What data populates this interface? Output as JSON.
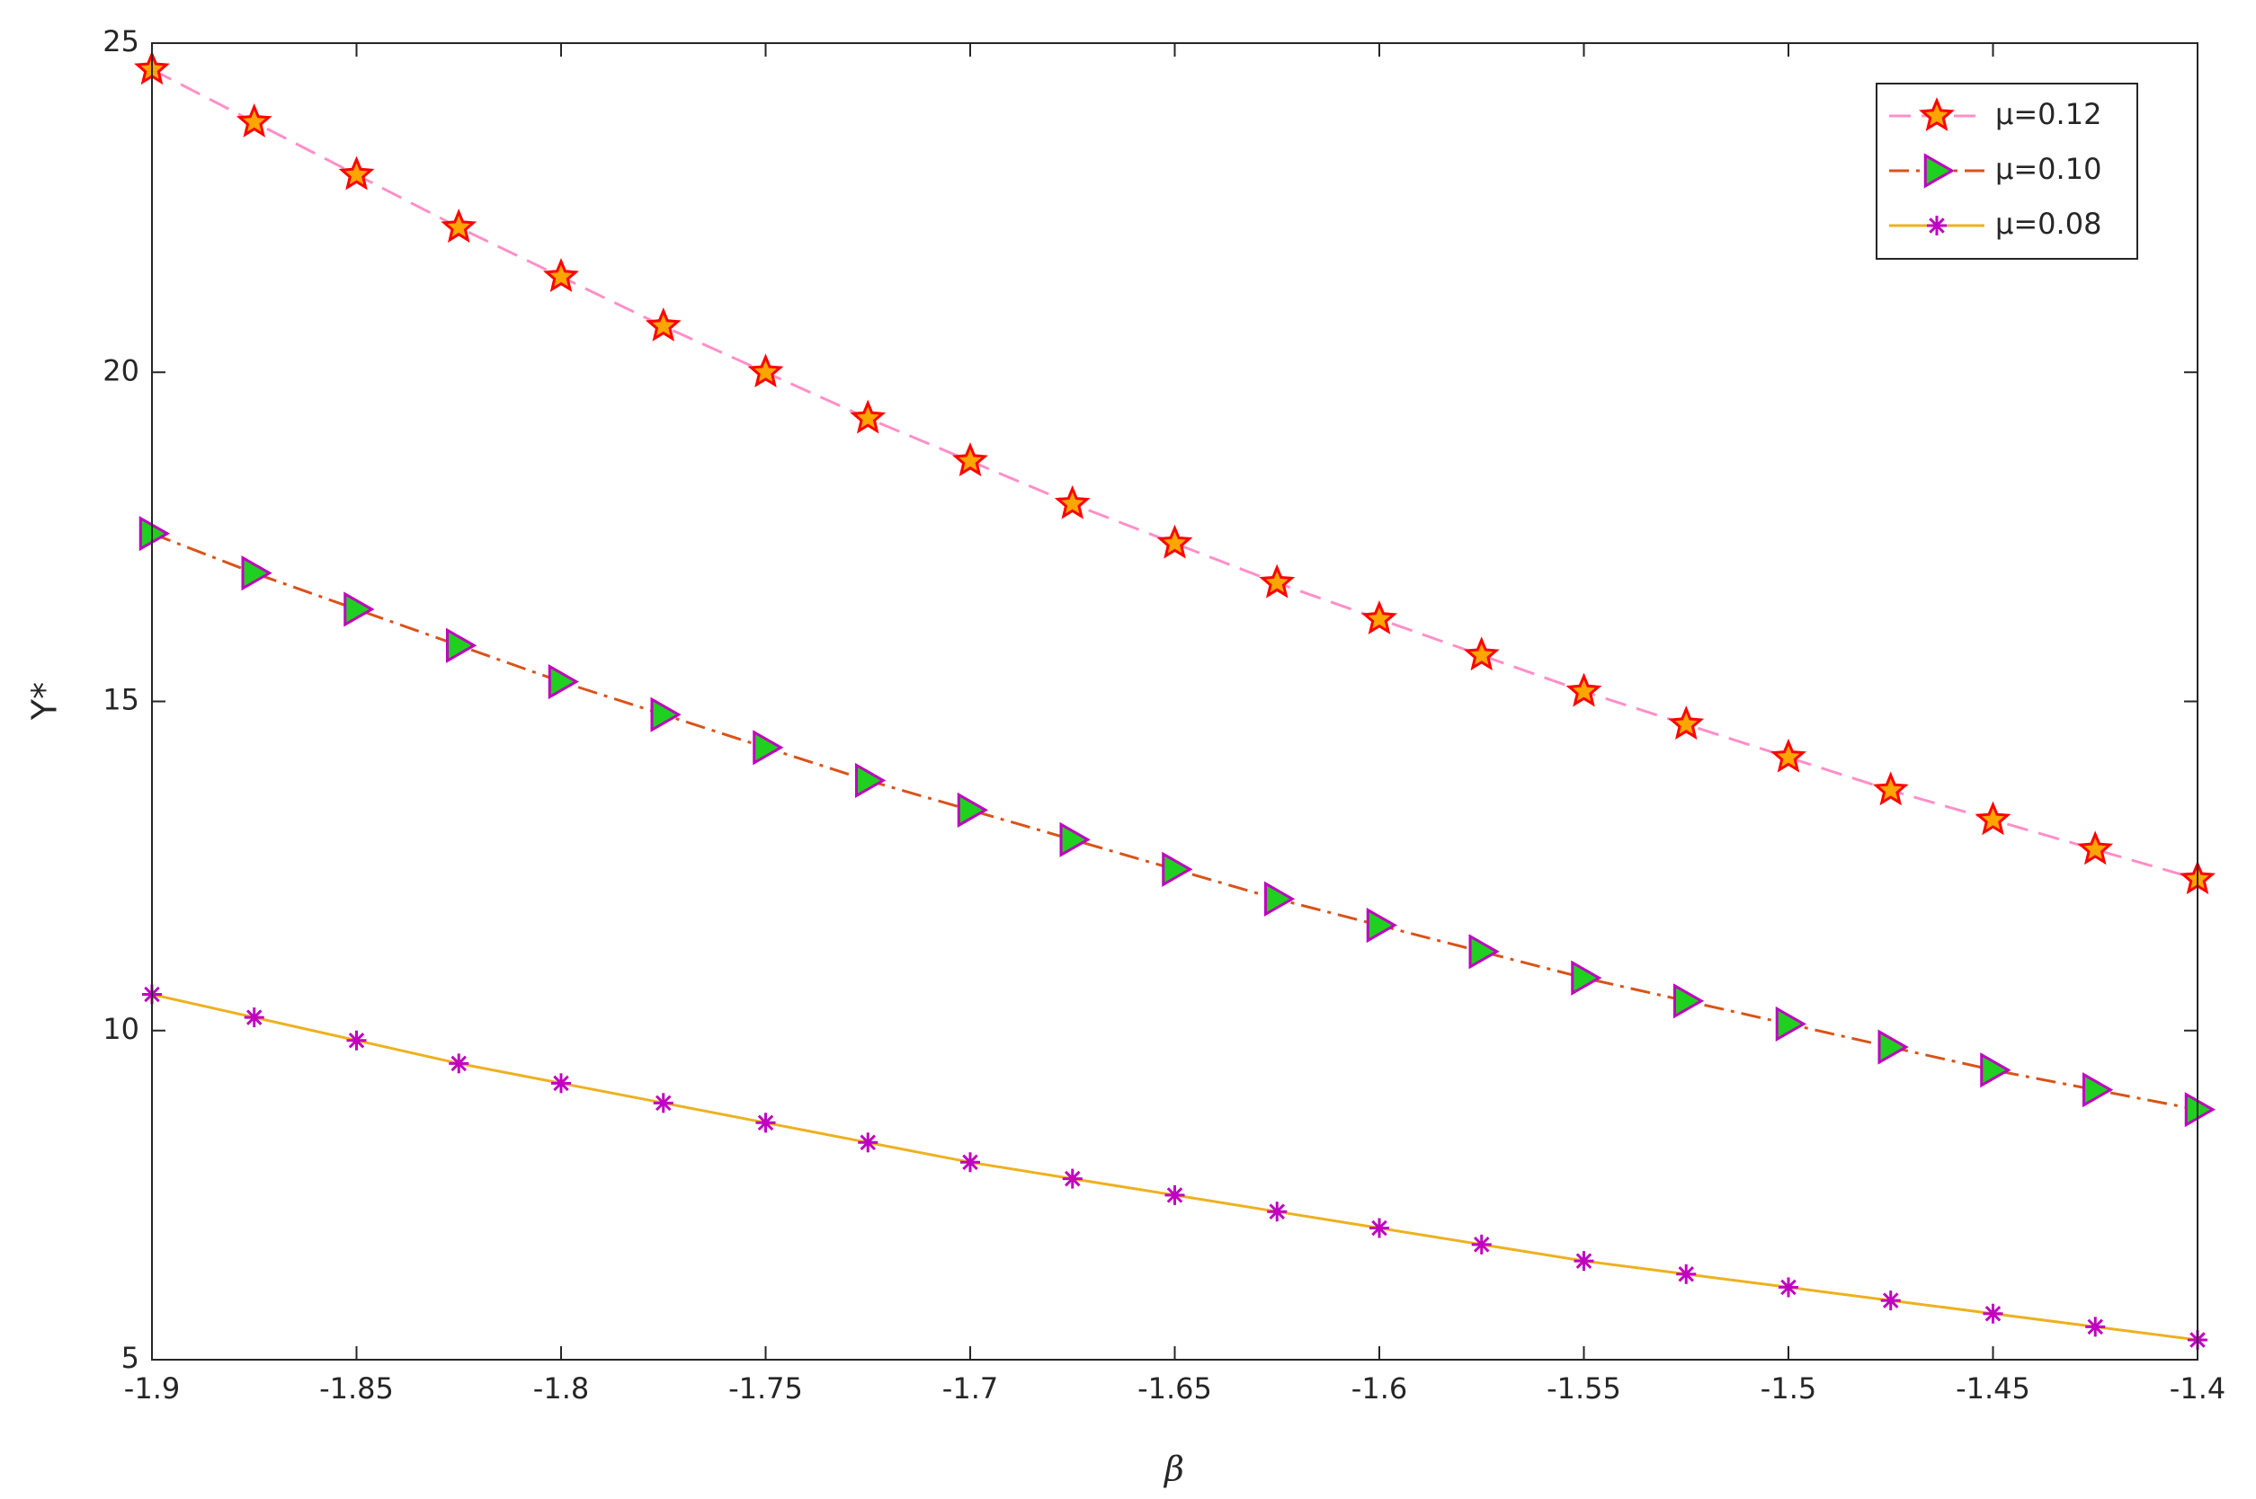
{
  "chart_data": {
    "type": "line",
    "xlabel": "β",
    "ylabel": "Y*",
    "x": [
      -1.9,
      -1.875,
      -1.85,
      -1.825,
      -1.8,
      -1.775,
      -1.75,
      -1.725,
      -1.7,
      -1.675,
      -1.65,
      -1.625,
      -1.6,
      -1.575,
      -1.55,
      -1.525,
      -1.5,
      -1.475,
      -1.45,
      -1.425,
      -1.4
    ],
    "xlim": [
      -1.9,
      -1.4
    ],
    "xticks": [
      -1.9,
      -1.85,
      -1.8,
      -1.75,
      -1.7,
      -1.65,
      -1.6,
      -1.55,
      -1.5,
      -1.45,
      -1.4
    ],
    "ylim": [
      5,
      25
    ],
    "yticks": [
      5,
      10,
      15,
      20,
      25
    ],
    "legend": "upper right",
    "series": [
      {
        "name": "μ=0.12",
        "color": "#ff8fc8",
        "dash": "dashed",
        "marker": "star",
        "marker_edge": "#ff0000",
        "marker_face": "#ffa500",
        "values": [
          24.6,
          23.8,
          23.0,
          22.2,
          21.45,
          20.7,
          20.0,
          19.3,
          18.65,
          18.0,
          17.4,
          16.8,
          16.25,
          15.7,
          15.15,
          14.65,
          14.15,
          13.65,
          13.2,
          12.75,
          12.3
        ]
      },
      {
        "name": "μ=0.10",
        "color": "#d95319",
        "dash": "dashdot",
        "marker": "triangle-right",
        "marker_edge": "#c000c0",
        "marker_face": "#20d020",
        "values": [
          17.55,
          16.95,
          16.4,
          15.85,
          15.3,
          14.8,
          14.3,
          13.8,
          13.35,
          12.9,
          12.45,
          12.0,
          11.6,
          11.2,
          10.8,
          10.45,
          10.1,
          9.75,
          9.4,
          9.1,
          8.8
        ]
      },
      {
        "name": "μ=0.08",
        "color": "#edb120",
        "dash": "solid",
        "marker": "asterisk",
        "marker_edge": "#c000c0",
        "marker_face": "none",
        "values": [
          10.55,
          10.2,
          9.85,
          9.5,
          9.2,
          8.9,
          8.6,
          8.3,
          8.0,
          7.75,
          7.5,
          7.25,
          7.0,
          6.75,
          6.5,
          6.3,
          6.1,
          5.9,
          5.7,
          5.5,
          5.3
        ]
      }
    ]
  }
}
